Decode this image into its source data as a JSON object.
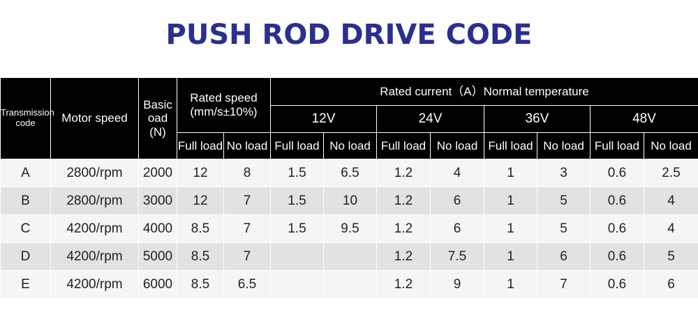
{
  "title": "PUSH ROD DRIVE CODE",
  "colors": {
    "title": "#2b2f8e",
    "header_bg": "#000000",
    "row_light": "#f5f5f5",
    "row_dark": "#e2e2e2"
  },
  "headers": {
    "transmission_line1": "Transmission",
    "transmission_line2": "code",
    "motor_speed": "Motor speed",
    "basic_line1": "Basic",
    "basic_line2": "oad",
    "basic_line3": "(N)",
    "rated_speed_line1": "Rated speed",
    "rated_speed_line2": "(mm/s±10%)",
    "rated_current": "Rated current（A）Normal temperature",
    "voltages": [
      "12V",
      "24V",
      "36V",
      "48V"
    ],
    "full_load": "Full load",
    "no_load": "No load"
  },
  "rows": [
    {
      "code": "A",
      "motor": "2800/rpm",
      "load": "2000",
      "spd_full": "12",
      "spd_no": "8",
      "v12_full": "1.5",
      "v12_no": "6.5",
      "v24_full": "1.2",
      "v24_no": "4",
      "v36_full": "1",
      "v36_no": "3",
      "v48_full": "0.6",
      "v48_no": "2.5"
    },
    {
      "code": "B",
      "motor": "2800/rpm",
      "load": "3000",
      "spd_full": "12",
      "spd_no": "7",
      "v12_full": "1.5",
      "v12_no": "10",
      "v24_full": "1.2",
      "v24_no": "6",
      "v36_full": "1",
      "v36_no": "5",
      "v48_full": "0.6",
      "v48_no": "4"
    },
    {
      "code": "C",
      "motor": "4200/rpm",
      "load": "4000",
      "spd_full": "8.5",
      "spd_no": "7",
      "v12_full": "1.5",
      "v12_no": "9.5",
      "v24_full": "1.2",
      "v24_no": "6",
      "v36_full": "1",
      "v36_no": "5",
      "v48_full": "0.6",
      "v48_no": "4"
    },
    {
      "code": "D",
      "motor": "4200/rpm",
      "load": "5000",
      "spd_full": "8.5",
      "spd_no": "7",
      "v12_full": "",
      "v12_no": "",
      "v24_full": "1.2",
      "v24_no": "7.5",
      "v36_full": "1",
      "v36_no": "6",
      "v48_full": "0.6",
      "v48_no": "5"
    },
    {
      "code": "E",
      "motor": "4200/rpm",
      "load": "6000",
      "spd_full": "8.5",
      "spd_no": "6.5",
      "v12_full": "",
      "v12_no": "",
      "v24_full": "1.2",
      "v24_no": "9",
      "v36_full": "1",
      "v36_no": "7",
      "v48_full": "0.6",
      "v48_no": "6"
    }
  ]
}
